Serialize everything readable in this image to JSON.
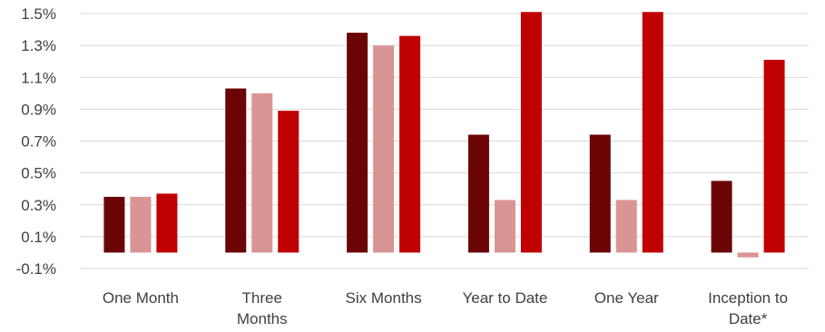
{
  "chart_data": {
    "type": "bar",
    "title": "",
    "xlabel": "",
    "ylabel": "",
    "categories": [
      [
        "One Month"
      ],
      [
        "Three",
        "Months"
      ],
      [
        "Six Months"
      ],
      [
        "Year to Date"
      ],
      [
        "One Year"
      ],
      [
        "Inception to",
        "Date*"
      ]
    ],
    "series": [
      {
        "color": "#6B0505",
        "values": [
          0.35,
          1.03,
          1.38,
          0.74,
          0.74,
          0.45
        ]
      },
      {
        "color": "#D99594",
        "values": [
          0.35,
          1.0,
          1.3,
          0.33,
          0.33,
          -0.03
        ]
      },
      {
        "color": "#C00000",
        "values": [
          0.37,
          0.89,
          1.36,
          1.51,
          1.51,
          1.21
        ]
      }
    ],
    "ylim": [
      -0.1,
      1.5
    ],
    "yticks": [
      -0.1,
      0.1,
      0.3,
      0.5,
      0.7,
      0.9,
      1.1,
      1.3,
      1.5
    ],
    "ytick_labels": [
      "-0.1%",
      "0.1%",
      "0.3%",
      "0.5%",
      "0.7%",
      "0.9%",
      "1.1%",
      "1.3%",
      "1.5%"
    ],
    "grid": true,
    "gridline_color": "#D9D9D9",
    "legend": "none"
  }
}
